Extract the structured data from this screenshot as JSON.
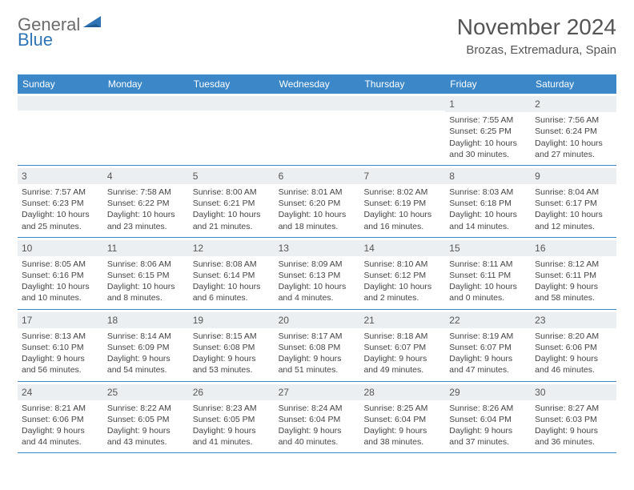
{
  "logo": {
    "text_gray": "General",
    "text_blue": "Blue"
  },
  "title": "November 2024",
  "location": "Brozas, Extremadura, Spain",
  "colors": {
    "header_bg": "#3b87c8",
    "header_text": "#ffffff",
    "daynum_bg": "#eceff1",
    "border": "#3b87c8",
    "text": "#444444",
    "logo_gray": "#6b6b6b",
    "logo_blue": "#2f74b5"
  },
  "day_labels": [
    "Sunday",
    "Monday",
    "Tuesday",
    "Wednesday",
    "Thursday",
    "Friday",
    "Saturday"
  ],
  "weeks": [
    [
      {
        "day": "",
        "sunrise": "",
        "sunset": "",
        "daylight": ""
      },
      {
        "day": "",
        "sunrise": "",
        "sunset": "",
        "daylight": ""
      },
      {
        "day": "",
        "sunrise": "",
        "sunset": "",
        "daylight": ""
      },
      {
        "day": "",
        "sunrise": "",
        "sunset": "",
        "daylight": ""
      },
      {
        "day": "",
        "sunrise": "",
        "sunset": "",
        "daylight": ""
      },
      {
        "day": "1",
        "sunrise": "Sunrise: 7:55 AM",
        "sunset": "Sunset: 6:25 PM",
        "daylight": "Daylight: 10 hours and 30 minutes."
      },
      {
        "day": "2",
        "sunrise": "Sunrise: 7:56 AM",
        "sunset": "Sunset: 6:24 PM",
        "daylight": "Daylight: 10 hours and 27 minutes."
      }
    ],
    [
      {
        "day": "3",
        "sunrise": "Sunrise: 7:57 AM",
        "sunset": "Sunset: 6:23 PM",
        "daylight": "Daylight: 10 hours and 25 minutes."
      },
      {
        "day": "4",
        "sunrise": "Sunrise: 7:58 AM",
        "sunset": "Sunset: 6:22 PM",
        "daylight": "Daylight: 10 hours and 23 minutes."
      },
      {
        "day": "5",
        "sunrise": "Sunrise: 8:00 AM",
        "sunset": "Sunset: 6:21 PM",
        "daylight": "Daylight: 10 hours and 21 minutes."
      },
      {
        "day": "6",
        "sunrise": "Sunrise: 8:01 AM",
        "sunset": "Sunset: 6:20 PM",
        "daylight": "Daylight: 10 hours and 18 minutes."
      },
      {
        "day": "7",
        "sunrise": "Sunrise: 8:02 AM",
        "sunset": "Sunset: 6:19 PM",
        "daylight": "Daylight: 10 hours and 16 minutes."
      },
      {
        "day": "8",
        "sunrise": "Sunrise: 8:03 AM",
        "sunset": "Sunset: 6:18 PM",
        "daylight": "Daylight: 10 hours and 14 minutes."
      },
      {
        "day": "9",
        "sunrise": "Sunrise: 8:04 AM",
        "sunset": "Sunset: 6:17 PM",
        "daylight": "Daylight: 10 hours and 12 minutes."
      }
    ],
    [
      {
        "day": "10",
        "sunrise": "Sunrise: 8:05 AM",
        "sunset": "Sunset: 6:16 PM",
        "daylight": "Daylight: 10 hours and 10 minutes."
      },
      {
        "day": "11",
        "sunrise": "Sunrise: 8:06 AM",
        "sunset": "Sunset: 6:15 PM",
        "daylight": "Daylight: 10 hours and 8 minutes."
      },
      {
        "day": "12",
        "sunrise": "Sunrise: 8:08 AM",
        "sunset": "Sunset: 6:14 PM",
        "daylight": "Daylight: 10 hours and 6 minutes."
      },
      {
        "day": "13",
        "sunrise": "Sunrise: 8:09 AM",
        "sunset": "Sunset: 6:13 PM",
        "daylight": "Daylight: 10 hours and 4 minutes."
      },
      {
        "day": "14",
        "sunrise": "Sunrise: 8:10 AM",
        "sunset": "Sunset: 6:12 PM",
        "daylight": "Daylight: 10 hours and 2 minutes."
      },
      {
        "day": "15",
        "sunrise": "Sunrise: 8:11 AM",
        "sunset": "Sunset: 6:11 PM",
        "daylight": "Daylight: 10 hours and 0 minutes."
      },
      {
        "day": "16",
        "sunrise": "Sunrise: 8:12 AM",
        "sunset": "Sunset: 6:11 PM",
        "daylight": "Daylight: 9 hours and 58 minutes."
      }
    ],
    [
      {
        "day": "17",
        "sunrise": "Sunrise: 8:13 AM",
        "sunset": "Sunset: 6:10 PM",
        "daylight": "Daylight: 9 hours and 56 minutes."
      },
      {
        "day": "18",
        "sunrise": "Sunrise: 8:14 AM",
        "sunset": "Sunset: 6:09 PM",
        "daylight": "Daylight: 9 hours and 54 minutes."
      },
      {
        "day": "19",
        "sunrise": "Sunrise: 8:15 AM",
        "sunset": "Sunset: 6:08 PM",
        "daylight": "Daylight: 9 hours and 53 minutes."
      },
      {
        "day": "20",
        "sunrise": "Sunrise: 8:17 AM",
        "sunset": "Sunset: 6:08 PM",
        "daylight": "Daylight: 9 hours and 51 minutes."
      },
      {
        "day": "21",
        "sunrise": "Sunrise: 8:18 AM",
        "sunset": "Sunset: 6:07 PM",
        "daylight": "Daylight: 9 hours and 49 minutes."
      },
      {
        "day": "22",
        "sunrise": "Sunrise: 8:19 AM",
        "sunset": "Sunset: 6:07 PM",
        "daylight": "Daylight: 9 hours and 47 minutes."
      },
      {
        "day": "23",
        "sunrise": "Sunrise: 8:20 AM",
        "sunset": "Sunset: 6:06 PM",
        "daylight": "Daylight: 9 hours and 46 minutes."
      }
    ],
    [
      {
        "day": "24",
        "sunrise": "Sunrise: 8:21 AM",
        "sunset": "Sunset: 6:06 PM",
        "daylight": "Daylight: 9 hours and 44 minutes."
      },
      {
        "day": "25",
        "sunrise": "Sunrise: 8:22 AM",
        "sunset": "Sunset: 6:05 PM",
        "daylight": "Daylight: 9 hours and 43 minutes."
      },
      {
        "day": "26",
        "sunrise": "Sunrise: 8:23 AM",
        "sunset": "Sunset: 6:05 PM",
        "daylight": "Daylight: 9 hours and 41 minutes."
      },
      {
        "day": "27",
        "sunrise": "Sunrise: 8:24 AM",
        "sunset": "Sunset: 6:04 PM",
        "daylight": "Daylight: 9 hours and 40 minutes."
      },
      {
        "day": "28",
        "sunrise": "Sunrise: 8:25 AM",
        "sunset": "Sunset: 6:04 PM",
        "daylight": "Daylight: 9 hours and 38 minutes."
      },
      {
        "day": "29",
        "sunrise": "Sunrise: 8:26 AM",
        "sunset": "Sunset: 6:04 PM",
        "daylight": "Daylight: 9 hours and 37 minutes."
      },
      {
        "day": "30",
        "sunrise": "Sunrise: 8:27 AM",
        "sunset": "Sunset: 6:03 PM",
        "daylight": "Daylight: 9 hours and 36 minutes."
      }
    ]
  ]
}
